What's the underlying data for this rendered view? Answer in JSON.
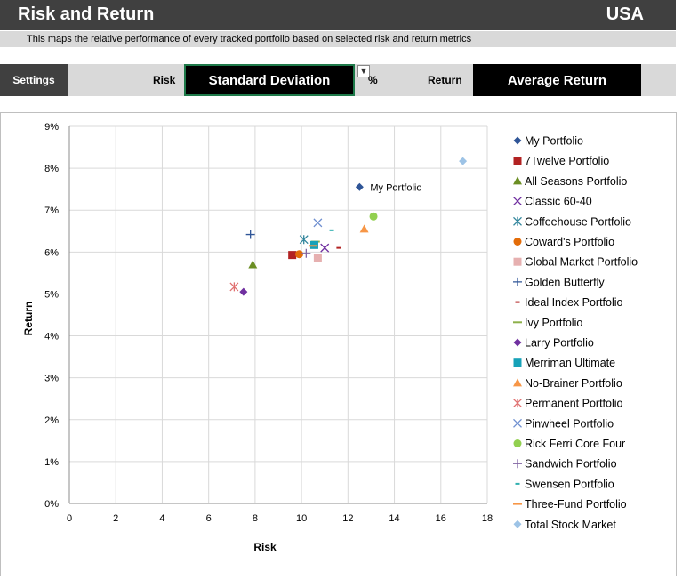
{
  "header": {
    "title": "Risk and Return",
    "country": "USA"
  },
  "description": "This maps the relative performance of every tracked portfolio based on selected risk and return metrics",
  "settings": {
    "label": "Settings",
    "risk_label": "Risk",
    "risk_value": "Standard Deviation",
    "percent_symbol": "%",
    "return_label": "Return",
    "return_value": "Average Return"
  },
  "chart_data": {
    "type": "scatter",
    "xlabel": "Risk",
    "ylabel": "Return",
    "xlim": [
      0,
      18
    ],
    "ylim": [
      0,
      9
    ],
    "x_ticks": [
      "0",
      "2",
      "4",
      "6",
      "8",
      "10",
      "12",
      "14",
      "16",
      "18"
    ],
    "y_ticks": [
      "0%",
      "1%",
      "2%",
      "3%",
      "4%",
      "5%",
      "6%",
      "7%",
      "8%",
      "9%"
    ],
    "grid": true,
    "legend_position": "right",
    "series": [
      {
        "name": "My Portfolio",
        "marker": "diamond",
        "color": "#2f5597",
        "x": 12.5,
        "y": 7.55,
        "label": "My Portfolio"
      },
      {
        "name": "7Twelve Portfolio",
        "marker": "square",
        "color": "#b22222",
        "x": 9.6,
        "y": 5.93
      },
      {
        "name": "All Seasons Portfolio",
        "marker": "triangle",
        "color": "#6b8e23",
        "x": 7.9,
        "y": 5.7
      },
      {
        "name": "Classic 60-40",
        "marker": "x",
        "color": "#7030a0",
        "x": 11.0,
        "y": 6.1
      },
      {
        "name": "Coffeehouse Portfolio",
        "marker": "star",
        "color": "#31859c",
        "x": 10.1,
        "y": 6.3
      },
      {
        "name": "Coward's Portfolio",
        "marker": "circle",
        "color": "#e36c09",
        "x": 9.9,
        "y": 5.95
      },
      {
        "name": "Global Market Portfolio",
        "marker": "square",
        "color": "#e6b0b0",
        "x": 10.7,
        "y": 5.85
      },
      {
        "name": "Golden Butterfly",
        "marker": "plus",
        "color": "#2f5597",
        "x": 7.8,
        "y": 6.42
      },
      {
        "name": "Ideal Index Portfolio",
        "marker": "dash",
        "color": "#b22222",
        "x": 11.6,
        "y": 6.1
      },
      {
        "name": "Ivy Portfolio",
        "marker": "longdash",
        "color": "#8db04a",
        "x": 10.6,
        "y": 6.25
      },
      {
        "name": "Larry Portfolio",
        "marker": "diamond",
        "color": "#7030a0",
        "x": 7.5,
        "y": 5.05
      },
      {
        "name": "Merriman Ultimate",
        "marker": "square",
        "color": "#17a2b8",
        "x": 10.55,
        "y": 6.17
      },
      {
        "name": "No-Brainer Portfolio",
        "marker": "triangle",
        "color": "#f79646",
        "x": 12.7,
        "y": 6.55
      },
      {
        "name": "Permanent Portfolio",
        "marker": "star",
        "color": "#e07070",
        "x": 7.1,
        "y": 5.17
      },
      {
        "name": "Pinwheel Portfolio",
        "marker": "x",
        "color": "#6f8fd0",
        "x": 10.7,
        "y": 6.7
      },
      {
        "name": "Rick Ferri Core Four",
        "marker": "circle",
        "color": "#92d050",
        "x": 13.1,
        "y": 6.85
      },
      {
        "name": "Sandwich Portfolio",
        "marker": "plus",
        "color": "#8064a2",
        "x": 10.2,
        "y": 5.97
      },
      {
        "name": "Swensen Portfolio",
        "marker": "dash",
        "color": "#31b0b0",
        "x": 11.3,
        "y": 6.52
      },
      {
        "name": "Three-Fund Portfolio",
        "marker": "longdash",
        "color": "#f79646",
        "x": 10.5,
        "y": 6.15
      },
      {
        "name": "Total Stock Market",
        "marker": "diamond",
        "color": "#9dc3e6",
        "x": 16.95,
        "y": 8.17
      }
    ]
  }
}
